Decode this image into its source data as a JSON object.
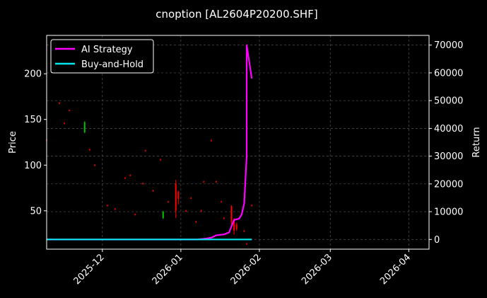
{
  "chart_data": {
    "type": "line",
    "title": "cnoption [AL2604P20200.SHF]",
    "xlabel": "",
    "ylabel_left": "Price",
    "ylabel_right": "Return",
    "x_ticks": [
      "2025-12",
      "2026-01",
      "2026-02",
      "2026-03",
      "2026-04"
    ],
    "x_range": [
      "2025-11-09",
      "2026-04-09"
    ],
    "y_left_ticks": [
      50,
      100,
      150,
      200
    ],
    "y_left_range": [
      8,
      242
    ],
    "y_right_ticks": [
      0,
      10000,
      20000,
      30000,
      40000,
      50000,
      60000,
      70000
    ],
    "y_right_range": [
      -3500,
      73500
    ],
    "grid": true,
    "legend_position": "top-left",
    "series": [
      {
        "name": "AI Strategy",
        "color": "#ff00ff",
        "axis": "right",
        "points": [
          [
            "2025-11-09",
            0
          ],
          [
            "2025-12-20",
            0
          ],
          [
            "2026-01-07",
            0
          ],
          [
            "2026-01-10",
            200
          ],
          [
            "2026-01-13",
            600
          ],
          [
            "2026-01-15",
            1500
          ],
          [
            "2026-01-18",
            1800
          ],
          [
            "2026-01-20",
            2500
          ],
          [
            "2026-01-22",
            7000
          ],
          [
            "2026-01-24",
            7500
          ],
          [
            "2026-01-25",
            9000
          ],
          [
            "2026-01-26",
            13000
          ],
          [
            "2026-01-27",
            30000
          ],
          [
            "2026-01-27",
            70000
          ],
          [
            "2026-01-28",
            64000
          ],
          [
            "2026-01-29",
            58000
          ]
        ]
      },
      {
        "name": "Buy-and-Hold",
        "color": "#00e5ee",
        "axis": "right",
        "points": [
          [
            "2025-11-09",
            0
          ],
          [
            "2026-01-29",
            0
          ]
        ]
      }
    ],
    "candles": [
      {
        "date": "2025-11-09",
        "open": 128,
        "high": 129,
        "low": 127,
        "close": 128,
        "color": "#ff0000"
      },
      {
        "date": "2025-11-14",
        "open": 168,
        "high": 169,
        "low": 167,
        "close": 168,
        "color": "#ff0000"
      },
      {
        "date": "2025-11-16",
        "open": 146,
        "high": 147,
        "low": 145,
        "close": 146,
        "color": "#ff0000"
      },
      {
        "date": "2025-11-18",
        "open": 160,
        "high": 161,
        "low": 159,
        "close": 160,
        "color": "#ff0000"
      },
      {
        "date": "2025-11-24",
        "open": 136,
        "high": 148,
        "low": 135,
        "close": 147,
        "color": "#00c000"
      },
      {
        "date": "2025-11-26",
        "open": 117,
        "high": 118,
        "low": 116,
        "close": 117,
        "color": "#ff0000"
      },
      {
        "date": "2025-11-28",
        "open": 100,
        "high": 101,
        "low": 99,
        "close": 100,
        "color": "#ff0000"
      },
      {
        "date": "2025-12-03",
        "open": 56,
        "high": 57,
        "low": 55,
        "close": 56,
        "color": "#ff0000"
      },
      {
        "date": "2025-12-06",
        "open": 52,
        "high": 53,
        "low": 51,
        "close": 52,
        "color": "#ff0000"
      },
      {
        "date": "2025-12-10",
        "open": 86,
        "high": 87,
        "low": 85,
        "close": 86,
        "color": "#ff0000"
      },
      {
        "date": "2025-12-12",
        "open": 89,
        "high": 90,
        "low": 88,
        "close": 89,
        "color": "#ff0000"
      },
      {
        "date": "2025-12-14",
        "open": 46,
        "high": 47,
        "low": 45,
        "close": 46,
        "color": "#ff0000"
      },
      {
        "date": "2025-12-17",
        "open": 80,
        "high": 81,
        "low": 79,
        "close": 80,
        "color": "#ff0000"
      },
      {
        "date": "2025-12-18",
        "open": 116,
        "high": 117,
        "low": 115,
        "close": 116,
        "color": "#ff0000"
      },
      {
        "date": "2025-12-21",
        "open": 72,
        "high": 73,
        "low": 71,
        "close": 72,
        "color": "#ff0000"
      },
      {
        "date": "2025-12-24",
        "open": 106,
        "high": 107,
        "low": 105,
        "close": 106,
        "color": "#ff0000"
      },
      {
        "date": "2025-12-25",
        "open": 42,
        "high": 50,
        "low": 41,
        "close": 49,
        "color": "#00c000"
      },
      {
        "date": "2025-12-27",
        "open": 60,
        "high": 61,
        "low": 59,
        "close": 60,
        "color": "#ff0000"
      },
      {
        "date": "2025-12-30",
        "open": 80,
        "high": 84,
        "low": 42,
        "close": 50,
        "color": "#ff0000"
      },
      {
        "date": "2025-12-31",
        "open": 71,
        "high": 72,
        "low": 57,
        "close": 63,
        "color": "#ff0000"
      },
      {
        "date": "2026-01-03",
        "open": 50,
        "high": 51,
        "low": 49,
        "close": 50,
        "color": "#ff0000"
      },
      {
        "date": "2026-01-05",
        "open": 64,
        "high": 65,
        "low": 63,
        "close": 64,
        "color": "#ff0000"
      },
      {
        "date": "2026-01-07",
        "open": 38,
        "high": 39,
        "low": 37,
        "close": 38,
        "color": "#ff0000"
      },
      {
        "date": "2026-01-09",
        "open": 50,
        "high": 51,
        "low": 49,
        "close": 50,
        "color": "#ff0000"
      },
      {
        "date": "2026-01-10",
        "open": 82,
        "high": 83,
        "low": 81,
        "close": 82,
        "color": "#ff0000"
      },
      {
        "date": "2026-01-13",
        "open": 127,
        "high": 128,
        "low": 126,
        "close": 127,
        "color": "#ff0000"
      },
      {
        "date": "2026-01-15",
        "open": 82,
        "high": 83,
        "low": 81,
        "close": 82,
        "color": "#ff0000"
      },
      {
        "date": "2026-01-17",
        "open": 60,
        "high": 61,
        "low": 59,
        "close": 60,
        "color": "#ff0000"
      },
      {
        "date": "2026-01-18",
        "open": 42,
        "high": 43,
        "low": 41,
        "close": 42,
        "color": "#ff0000"
      },
      {
        "date": "2026-01-21",
        "open": 55,
        "high": 56,
        "low": 35,
        "close": 38,
        "color": "#ff0000"
      },
      {
        "date": "2026-01-22",
        "open": 40,
        "high": 42,
        "low": 24,
        "close": 28,
        "color": "#ff0000"
      },
      {
        "date": "2026-01-23",
        "open": 35,
        "high": 37,
        "low": 28,
        "close": 30,
        "color": "#ff0000"
      },
      {
        "date": "2026-01-26",
        "open": 28,
        "high": 29,
        "low": 27,
        "close": 28,
        "color": "#ff0000"
      },
      {
        "date": "2026-01-27",
        "open": 14,
        "high": 15,
        "low": 13,
        "close": 14,
        "color": "#ff0000"
      },
      {
        "date": "2026-01-29",
        "open": 56,
        "high": 57,
        "low": 55,
        "close": 56,
        "color": "#ff0000"
      }
    ]
  }
}
